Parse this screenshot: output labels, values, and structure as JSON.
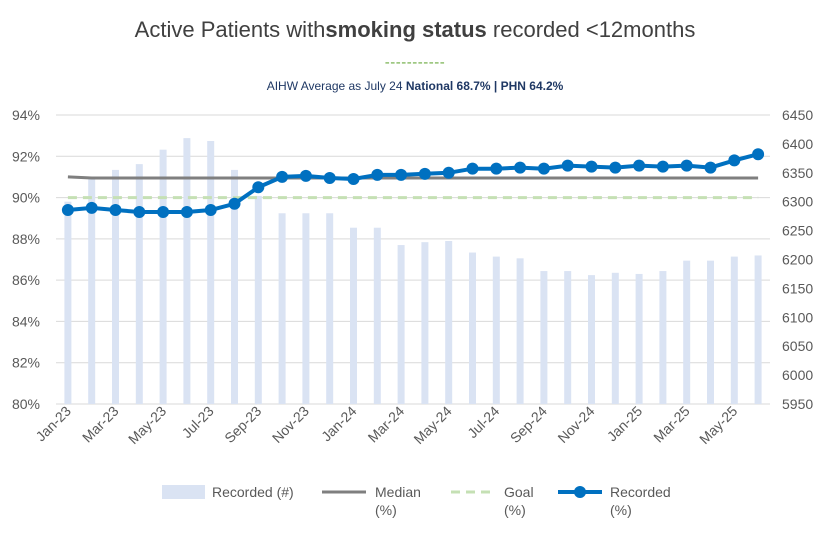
{
  "chart_data": {
    "type": "bar+line",
    "title_parts": [
      "Active Patients with",
      "smoking status",
      " recorded <12months"
    ],
    "title_divider": "-----------",
    "subtitle_parts": [
      "AIHW Average as July 24 ",
      "National 68.7% | PHN 64.2%"
    ],
    "colors": {
      "bar": "#dae3f3",
      "median": "#7f7f7f",
      "goal": "#c5e0b4",
      "recorded": "#0070c0",
      "title_divider": "#70ad47",
      "axis_text": "#595959",
      "gridline": "#d9d9d9"
    },
    "left_axis": {
      "min": 80,
      "max": 94,
      "step": 2,
      "tick_labels": [
        "80%",
        "82%",
        "84%",
        "86%",
        "88%",
        "90%",
        "92%",
        "94%"
      ],
      "gridlines": true
    },
    "right_axis": {
      "min": 5950,
      "max": 6450,
      "step": 50,
      "tick_labels": [
        "5950",
        "6000",
        "6050",
        "6100",
        "6150",
        "6200",
        "6250",
        "6300",
        "6350",
        "6400",
        "6450"
      ]
    },
    "x_labels": [
      "Jan-23",
      "Mar-23",
      "May-23",
      "Jul-23",
      "Sep-23",
      "Nov-23",
      "Jan-24",
      "Mar-24",
      "May-24",
      "Jul-24",
      "Sep-24",
      "Nov-24",
      "Jan-25",
      "Mar-25",
      "May-25"
    ],
    "periods": [
      "Jan-23",
      "Feb-23",
      "Mar-23",
      "Apr-23",
      "May-23",
      "Jun-23",
      "Jul-23",
      "Aug-23",
      "Sep-23",
      "Oct-23",
      "Nov-23",
      "Dec-23",
      "Jan-24",
      "Feb-24",
      "Mar-24",
      "Apr-24",
      "May-24",
      "Jun-24",
      "Jul-24",
      "Aug-24",
      "Sep-24",
      "Oct-24",
      "Nov-24",
      "Dec-24",
      "Jan-25",
      "Feb-25",
      "Mar-25",
      "Apr-25",
      "May-25",
      "Jun-25"
    ],
    "series": [
      {
        "name": "Recorded (#)",
        "type": "bar",
        "axis": "right",
        "values": [
          6300,
          6340,
          6355,
          6365,
          6390,
          6410,
          6405,
          6355,
          6310,
          6280,
          6280,
          6280,
          6255,
          6255,
          6225,
          6230,
          6232,
          6212,
          6205,
          6202,
          6180,
          6180,
          6173,
          6177,
          6175,
          6180,
          6198,
          6198,
          6205,
          6207
        ]
      },
      {
        "name": "Median (%)",
        "type": "line",
        "axis": "left",
        "values": [
          91.0,
          90.95,
          90.95,
          90.95,
          90.95,
          90.95,
          90.95,
          90.95,
          90.95,
          90.95,
          90.95,
          90.95,
          90.95,
          90.95,
          90.95,
          90.95,
          90.95,
          90.95,
          90.95,
          90.95,
          90.95,
          90.95,
          90.95,
          90.95,
          90.95,
          90.95,
          90.95,
          90.95,
          90.95,
          90.95
        ]
      },
      {
        "name": "Goal (%)",
        "type": "line",
        "dashed": true,
        "axis": "left",
        "values": [
          90,
          90,
          90,
          90,
          90,
          90,
          90,
          90,
          90,
          90,
          90,
          90,
          90,
          90,
          90,
          90,
          90,
          90,
          90,
          90,
          90,
          90,
          90,
          90,
          90,
          90,
          90,
          90,
          90,
          90
        ]
      },
      {
        "name": "Recorded (%)",
        "type": "line",
        "markers": true,
        "axis": "left",
        "values": [
          89.4,
          89.5,
          89.4,
          89.3,
          89.3,
          89.3,
          89.4,
          89.7,
          90.5,
          91.0,
          91.05,
          90.95,
          90.9,
          91.1,
          91.1,
          91.15,
          91.2,
          91.4,
          91.4,
          91.45,
          91.4,
          91.55,
          91.5,
          91.45,
          91.55,
          91.5,
          91.55,
          91.45,
          91.8,
          92.1
        ]
      }
    ],
    "legend": {
      "placement": "bottom",
      "items": [
        {
          "line1": "Recorded (#)",
          "line2": ""
        },
        {
          "line1": "Median",
          "line2": "(%)"
        },
        {
          "line1": "Goal",
          "line2": "(%)"
        },
        {
          "line1": "Recorded",
          "line2": "(%)"
        }
      ]
    }
  }
}
